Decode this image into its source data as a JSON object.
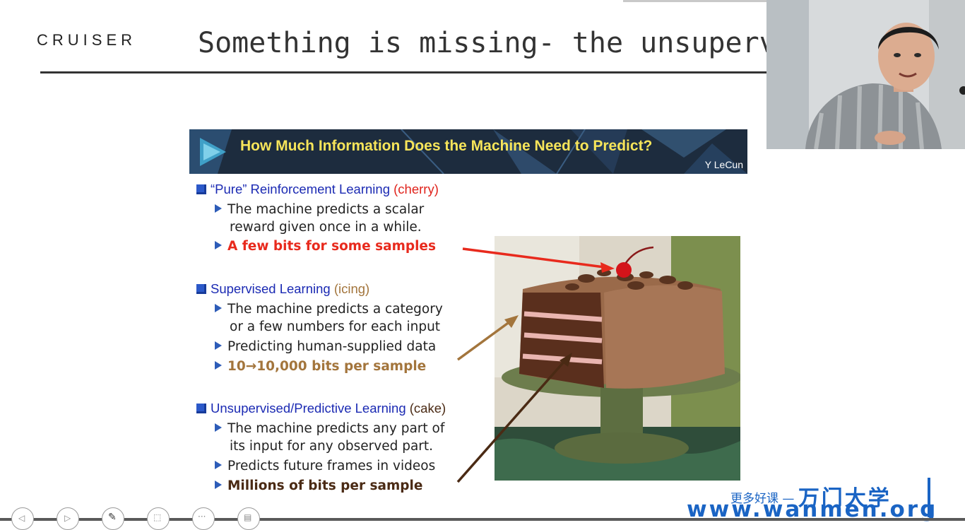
{
  "header": {
    "logo_text": "CRUISER",
    "title": "Something is missing- the unsupervise"
  },
  "banner": {
    "title": "How Much Information Does the Machine Need to Predict?",
    "author": "Y LeCun"
  },
  "sections": [
    {
      "heading": "“Pure” Reinforcement Learning",
      "tag": "(cherry)",
      "tag_color": "#e0231c",
      "lines": [
        "The machine predicts a scalar",
        "reward given once in a while."
      ],
      "highlight": "A few bits for some samples",
      "highlight_color": "#e82a1d"
    },
    {
      "heading": "Supervised Learning",
      "tag": "(icing)",
      "tag_color": "#a3753c",
      "lines": [
        "The machine predicts a category",
        "or a few numbers for each input",
        "Predicting human-supplied data"
      ],
      "highlight": "10→10,000 bits per sample",
      "highlight_color": "#a3753c"
    },
    {
      "heading": "Unsupervised/Predictive Learning",
      "tag": "(cake)",
      "tag_color": "#4a2a14",
      "lines": [
        "The machine predicts any part of",
        "its input for any observed part.",
        "Predicts future frames in videos"
      ],
      "highlight": "Millions of bits per sample",
      "highlight_color": "#4a2a14"
    }
  ],
  "watermark": {
    "line1_small": "更多好课 —",
    "line1_big": "万门大学",
    "line2": "www.wanmen.org"
  },
  "colors": {
    "title_rule": "#333333",
    "heading_blue": "#1b2ab3",
    "watermark_blue": "#1a64c4"
  },
  "icons": [
    "prev-icon",
    "next-icon",
    "pen-icon",
    "select-icon",
    "more-icon",
    "menu-icon"
  ]
}
